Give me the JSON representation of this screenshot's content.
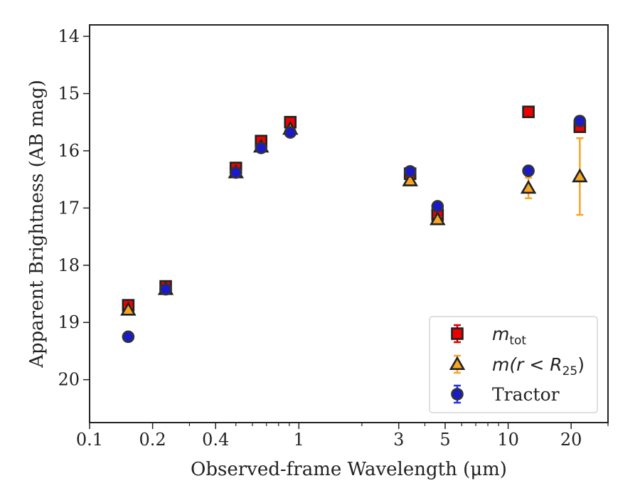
{
  "chart_data": {
    "type": "scatter",
    "xlabel": "Observed-frame Wavelength (μm)",
    "ylabel": "Apparent Brightness (AB mag)",
    "x_scale": "log",
    "xlim": [
      0.1,
      30
    ],
    "ylim": [
      20.75,
      13.8
    ],
    "y_inverted": true,
    "grid": false,
    "legend_position": "lower-right",
    "x_ticks": [
      {
        "value": 0.1,
        "label": "0.1"
      },
      {
        "value": 0.2,
        "label": "0.2"
      },
      {
        "value": 0.4,
        "label": "0.4"
      },
      {
        "value": 1,
        "label": "1"
      },
      {
        "value": 3,
        "label": "3"
      },
      {
        "value": 5,
        "label": "5"
      },
      {
        "value": 10,
        "label": "10"
      },
      {
        "value": 20,
        "label": "20"
      }
    ],
    "y_ticks": [
      {
        "value": 14,
        "label": "14"
      },
      {
        "value": 15,
        "label": "15"
      },
      {
        "value": 16,
        "label": "16"
      },
      {
        "value": 17,
        "label": "17"
      },
      {
        "value": 18,
        "label": "18"
      },
      {
        "value": 19,
        "label": "19"
      },
      {
        "value": 20,
        "label": "20"
      }
    ],
    "series": [
      {
        "name": "m_tot",
        "label_main": "m",
        "label_sub": "tot",
        "marker": "square",
        "color": "#ee0000",
        "errcolor": "#dd0000",
        "points": [
          {
            "x": 0.153,
            "y": 18.7,
            "err": 0.05
          },
          {
            "x": 0.231,
            "y": 18.37,
            "err": 0.03
          },
          {
            "x": 0.5,
            "y": 16.3,
            "err": 0.03
          },
          {
            "x": 0.66,
            "y": 15.83,
            "err": 0.03
          },
          {
            "x": 0.91,
            "y": 15.5,
            "err": 0.03
          },
          {
            "x": 3.4,
            "y": 16.4,
            "err": 0.03
          },
          {
            "x": 4.6,
            "y": 17.12,
            "err": 0.05
          },
          {
            "x": 12.5,
            "y": 15.32,
            "err": 0.03
          },
          {
            "x": 22.0,
            "y": 15.58,
            "err": 0.03
          }
        ]
      },
      {
        "name": "m(r<R_25)",
        "label_main": "m(r < R",
        "label_sub": "25",
        "label_tail": ")",
        "marker": "triangle",
        "color": "#f5a623",
        "errcolor": "#f5a623",
        "points": [
          {
            "x": 0.153,
            "y": 18.78,
            "err": 0.04
          },
          {
            "x": 0.231,
            "y": 18.42,
            "err": 0.03
          },
          {
            "x": 0.5,
            "y": 16.38,
            "err": 0.03
          },
          {
            "x": 0.66,
            "y": 15.93,
            "err": 0.03
          },
          {
            "x": 0.91,
            "y": 15.62,
            "err": 0.03
          },
          {
            "x": 3.4,
            "y": 16.52,
            "err": 0.03
          },
          {
            "x": 4.6,
            "y": 17.2,
            "err": 0.04
          },
          {
            "x": 12.5,
            "y": 16.65,
            "err": 0.18
          },
          {
            "x": 22.0,
            "y": 16.45,
            "err": 0.67
          }
        ]
      },
      {
        "name": "Tractor",
        "label_main": "Tractor",
        "marker": "circle",
        "color": "#1a1acc",
        "errcolor": "#2233ee",
        "points": [
          {
            "x": 0.153,
            "y": 19.25,
            "err": 0.06
          },
          {
            "x": 0.231,
            "y": 18.42,
            "err": 0.03
          },
          {
            "x": 0.5,
            "y": 16.38,
            "err": 0.03
          },
          {
            "x": 0.66,
            "y": 15.95,
            "err": 0.03
          },
          {
            "x": 0.91,
            "y": 15.68,
            "err": 0.03
          },
          {
            "x": 3.4,
            "y": 16.36,
            "err": 0.07
          },
          {
            "x": 4.6,
            "y": 16.97,
            "err": 0.07
          },
          {
            "x": 12.5,
            "y": 16.35,
            "err": 0.08
          },
          {
            "x": 22.0,
            "y": 15.48,
            "err": 0.08
          }
        ]
      }
    ]
  }
}
